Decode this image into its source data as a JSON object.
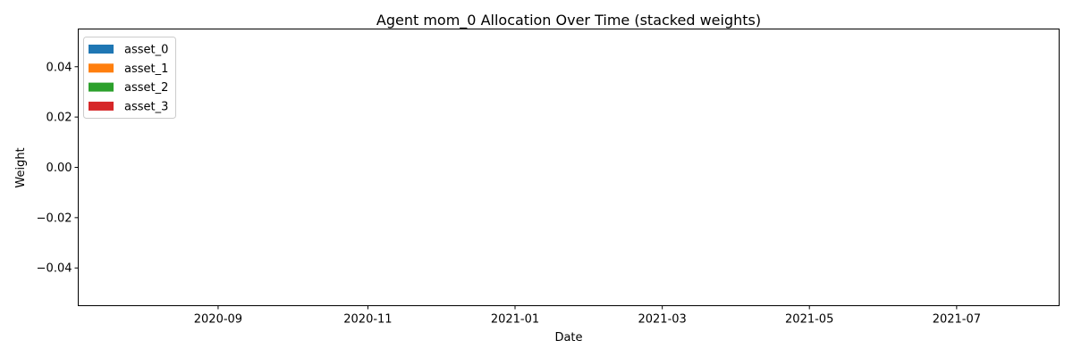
{
  "chart_data": {
    "type": "area",
    "title": "Agent mom_0 Allocation Over Time (stacked weights)",
    "xlabel": "Date",
    "ylabel": "Weight",
    "x_tick_labels": [
      "2020-09",
      "2020-11",
      "2021-01",
      "2021-03",
      "2021-05",
      "2021-07"
    ],
    "x_tick_values": [
      0.1426,
      0.2953,
      0.4453,
      0.5954,
      0.7454,
      0.8955
    ],
    "ylim": [
      -0.055,
      0.055
    ],
    "y_ticks": [
      -0.04,
      -0.02,
      0.0,
      0.02,
      0.04
    ],
    "y_tick_labels": [
      "−0.04",
      "−0.02",
      "0.00",
      "0.02",
      "0.04"
    ],
    "grid": false,
    "legend_position": "top-left",
    "series": [
      {
        "name": "asset_0",
        "color": "#1f77b4",
        "values": []
      },
      {
        "name": "asset_1",
        "color": "#ff7f0e",
        "values": []
      },
      {
        "name": "asset_2",
        "color": "#2ca02c",
        "values": []
      },
      {
        "name": "asset_3",
        "color": "#d62728",
        "values": []
      }
    ]
  }
}
